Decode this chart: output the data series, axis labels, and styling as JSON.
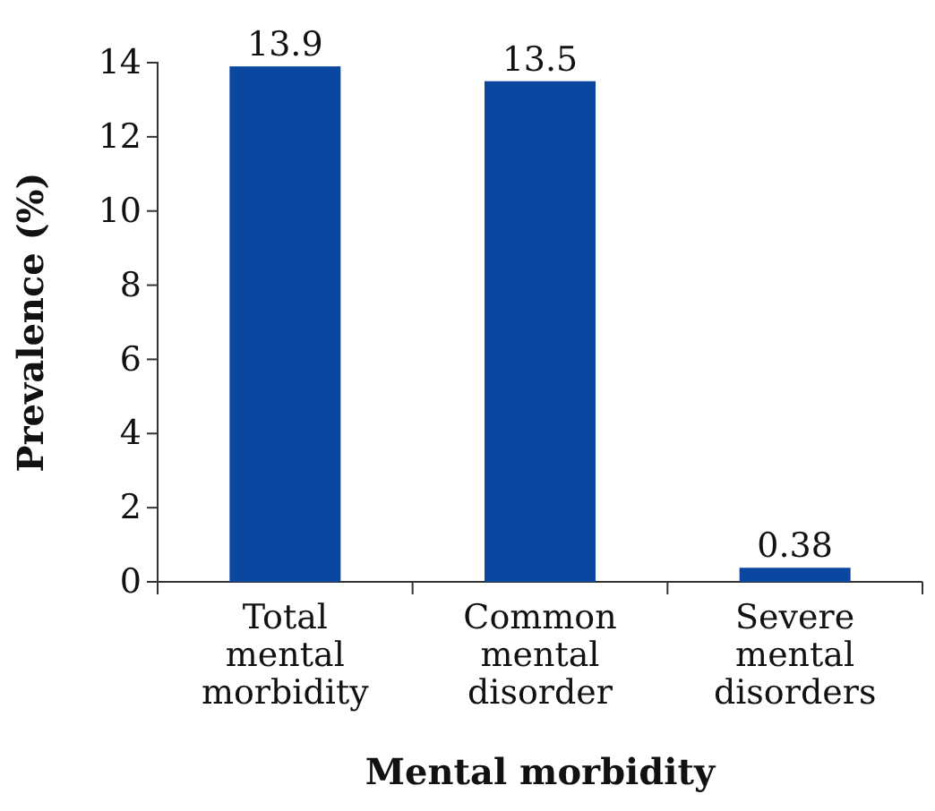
{
  "chart_data": {
    "type": "bar",
    "xlabel": "Mental morbidity",
    "ylabel": "Prevalence (%)",
    "categories": [
      "Total mental morbidity",
      "Common mental disorder",
      "Severe mental disorders"
    ],
    "values": [
      13.9,
      13.5,
      0.38
    ],
    "color": "#0b47a0",
    "ylim": [
      0,
      14
    ],
    "yticks": [
      0,
      2,
      4,
      6,
      8,
      10,
      12,
      14
    ],
    "data_labels": true,
    "grid": false
  }
}
